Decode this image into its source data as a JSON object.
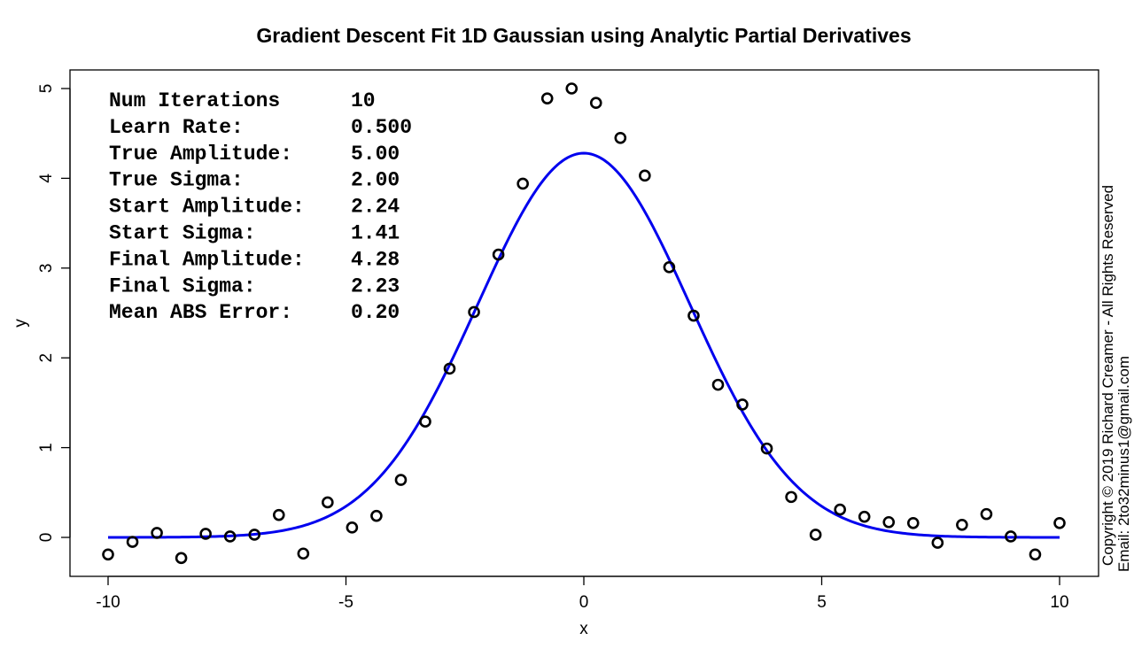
{
  "chart_data": {
    "type": "scatter",
    "title": "Gradient Descent Fit 1D Gaussian using Analytic Partial Derivatives",
    "xlabel": "x",
    "ylabel": "y",
    "xlim": [
      -10,
      10
    ],
    "ylim": [
      -0.45,
      5.15
    ],
    "x_ticks": [
      -10,
      -5,
      0,
      5,
      10
    ],
    "x_tick_labels": [
      "-10",
      "-5",
      "0",
      "5",
      "10"
    ],
    "y_ticks": [
      0,
      1,
      2,
      3,
      4,
      5
    ],
    "y_tick_labels": [
      "0",
      "1",
      "2",
      "3",
      "4",
      "5"
    ],
    "grid": false,
    "points": {
      "x": [
        -10.0,
        -9.487,
        -8.974,
        -8.462,
        -7.949,
        -7.436,
        -6.923,
        -6.41,
        -5.897,
        -5.385,
        -4.872,
        -4.359,
        -3.846,
        -3.333,
        -2.821,
        -2.308,
        -1.795,
        -1.282,
        -0.769,
        -0.256,
        0.256,
        0.769,
        1.282,
        1.795,
        2.308,
        2.821,
        3.333,
        3.846,
        4.359,
        4.872,
        5.385,
        5.897,
        6.41,
        6.923,
        7.436,
        7.949,
        8.462,
        8.974,
        9.487,
        10.0
      ],
      "y": [
        -0.19,
        -0.05,
        0.05,
        -0.23,
        0.04,
        0.01,
        0.03,
        0.25,
        -0.18,
        0.39,
        0.11,
        0.24,
        0.64,
        1.29,
        1.88,
        2.51,
        3.15,
        3.94,
        4.89,
        5.0,
        4.84,
        4.45,
        4.03,
        3.01,
        2.47,
        1.7,
        1.48,
        0.99,
        0.45,
        0.03,
        0.31,
        0.23,
        0.17,
        0.16,
        -0.06,
        0.14,
        0.26,
        0.01,
        -0.19,
        0.16
      ],
      "marker_color": "#000000"
    },
    "fit_curve": {
      "function": "gaussian",
      "amplitude": 4.28,
      "sigma": 2.23,
      "center": 0,
      "color": "#0000ee"
    },
    "annotations": [
      {
        "label": "Num Iterations",
        "value": "10"
      },
      {
        "label": "Learn Rate:",
        "value": "0.500"
      },
      {
        "label": "True Amplitude:",
        "value": "5.00"
      },
      {
        "label": "True Sigma:",
        "value": "2.00"
      },
      {
        "label": "Start Amplitude:",
        "value": "2.24"
      },
      {
        "label": "Start Sigma:",
        "value": "1.41"
      },
      {
        "label": "Final Amplitude:",
        "value": "4.28"
      },
      {
        "label": "Final Sigma:",
        "value": "2.23"
      },
      {
        "label": "Mean ABS Error:",
        "value": "0.20"
      }
    ],
    "copyright": {
      "line1": "Copyright © 2019 Richard Creamer - All Rights Reserved",
      "line2": "Email: 2to32minus1@gmail.com"
    }
  }
}
